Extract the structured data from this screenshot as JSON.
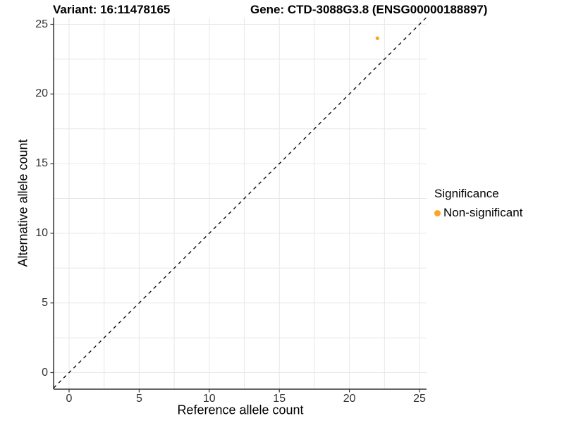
{
  "header": {
    "variant_title": "Variant: 16:11478165",
    "gene_title": "Gene: CTD-3088G3.8 (ENSG00000188897)"
  },
  "chart_data": {
    "type": "scatter",
    "xlabel": "Reference allele count",
    "ylabel": "Alternative allele count",
    "xlim": [
      0,
      25
    ],
    "ylim": [
      0,
      25
    ],
    "xticks": [
      0,
      5,
      10,
      15,
      20,
      25
    ],
    "yticks": [
      0,
      5,
      10,
      15,
      20,
      25
    ],
    "minor_grid_step": 2.5,
    "grid": true,
    "points": [
      {
        "x": 22,
        "y": 24,
        "series": "Non-significant"
      }
    ],
    "point_radius": 2.6,
    "series_colors": {
      "Non-significant": "#FFA320"
    },
    "reference_line": {
      "type": "identity_y_equals_x",
      "style": "dashed",
      "color": "#000000"
    }
  },
  "legend": {
    "title": "Significance",
    "position": "right",
    "items": [
      {
        "label": "Non-significant",
        "color": "#FFA320",
        "marker": "circle"
      }
    ]
  },
  "colors": {
    "background": "#FFFFFF",
    "gridline": "#E7E7E7",
    "axis_line": "#333333",
    "tick_mark": "#333333",
    "tick_label": "#333333",
    "title_text": "#000000"
  }
}
